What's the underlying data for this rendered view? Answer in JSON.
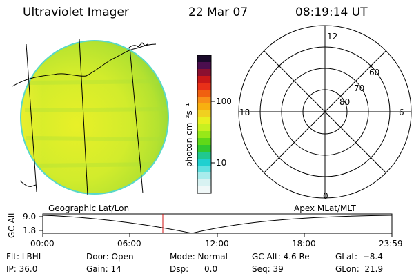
{
  "header": {
    "title": "Ultraviolet Imager",
    "date": "22 Mar 07",
    "time": "08:19:14 UT"
  },
  "colorbar": {
    "label": "photon cm⁻²s⁻¹",
    "ticks": [
      "100",
      "10"
    ],
    "colors": [
      "#1a0a2a",
      "#4b0e4e",
      "#8a1030",
      "#c81818",
      "#e83018",
      "#f06010",
      "#f89018",
      "#f8b010",
      "#f0d020",
      "#e8f020",
      "#c8f020",
      "#98e818",
      "#60d818",
      "#30c830",
      "#20c890",
      "#20d0d0",
      "#60e0e0",
      "#a8ecec",
      "#d8f2f2",
      "#f0f8f8"
    ]
  },
  "polar": {
    "mlt_labels": {
      "top": "12",
      "left": "18",
      "right": "6",
      "bottom": "0"
    },
    "lat_labels": [
      "60",
      "70",
      "80"
    ]
  },
  "timeline": {
    "left_label": "Geographic Lat/Lon",
    "right_label": "Apex MLat/MLT",
    "axis_title": "GC Alt",
    "y_ticks": [
      "9.0",
      "1.8"
    ],
    "x_ticks": [
      "00:00",
      "06:00",
      "12:00",
      "18:00",
      "23:59"
    ]
  },
  "info": {
    "flt": "Flt: LBHL",
    "ip": "IP: 36.0",
    "door": "Door: Open",
    "gain": "Gain: 14",
    "mode": "Mode: Normal",
    "dsp": "Dsp:      0.0",
    "gc_alt": "GC Alt: 4.6 Re",
    "seq": "Seq: 39",
    "glat": "GLat:  −8.4",
    "glon": "GLon:  21.9"
  }
}
